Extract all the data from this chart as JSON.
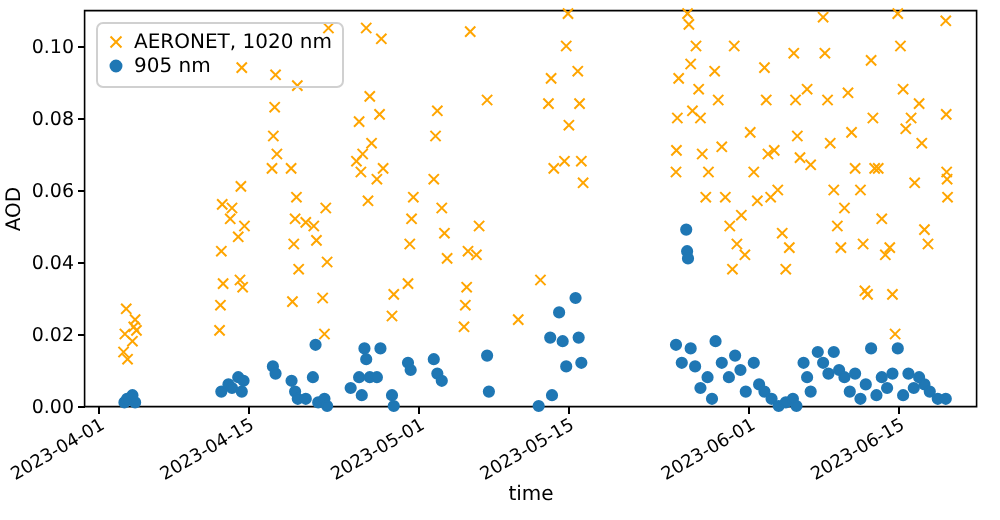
{
  "chart_data": {
    "type": "scatter",
    "xlabel": "time",
    "ylabel": "AOD",
    "legend": "top left",
    "grid": false,
    "xlim": [
      "2023-03-30T17:00",
      "2023-06-22T08:00"
    ],
    "xticks": [
      "2023-04-01",
      "2023-04-15",
      "2023-05-01",
      "2023-05-15",
      "2023-06-01",
      "2023-06-15"
    ],
    "ylim": [
      0,
      0.11
    ],
    "yticks": [
      {
        "value": 0,
        "label": "0.00"
      },
      {
        "value": 0.02,
        "label": "0.02"
      },
      {
        "value": 0.04,
        "label": "0.04"
      },
      {
        "value": 0.06,
        "label": "0.06"
      },
      {
        "value": 0.08,
        "label": "0.08"
      },
      {
        "value": 0.1,
        "label": "0.10"
      }
    ],
    "series": [
      {
        "name": "AERONET, 1020 nm",
        "color": "#ffa500",
        "marker": "cross",
        "x": [
          "2023-04-03T10:00",
          "2023-04-03T13:00",
          "2023-04-03T16:00",
          "2023-04-03T19:00",
          "2023-04-04T06:00",
          "2023-04-04T09:00",
          "2023-04-04T12:00",
          "2023-04-04T15:00",
          "2023-04-12T10:00",
          "2023-04-12T12:00",
          "2023-04-12T14:00",
          "2023-04-12T16:00",
          "2023-04-12T18:00",
          "2023-04-13T10:00",
          "2023-04-13T14:00",
          "2023-04-14T04:00",
          "2023-04-14T08:00",
          "2023-04-14T10:00",
          "2023-04-14T12:00",
          "2023-04-14T14:00",
          "2023-04-14T18:00",
          "2023-04-17T08:00",
          "2023-04-17T11:00",
          "2023-04-17T14:00",
          "2023-04-17T16:00",
          "2023-04-17T19:00",
          "2023-04-19T03:00",
          "2023-04-19T06:00",
          "2023-04-19T09:00",
          "2023-04-19T12:00",
          "2023-04-19T15:00",
          "2023-04-19T17:00",
          "2023-04-19T20:00",
          "2023-04-20T12:00",
          "2023-04-21T06:00",
          "2023-04-21T12:00",
          "2023-04-22T02:00",
          "2023-04-22T06:00",
          "2023-04-22T09:00",
          "2023-04-22T12:00",
          "2023-04-22T15:00",
          "2023-04-25T06:00",
          "2023-04-25T12:00",
          "2023-04-25T16:00",
          "2023-04-25T20:00",
          "2023-04-26T04:00",
          "2023-04-26T08:00",
          "2023-04-26T12:00",
          "2023-04-26T16:00",
          "2023-04-27T04:00",
          "2023-04-27T10:00",
          "2023-04-27T14:00",
          "2023-04-27T18:00",
          "2023-04-28T14:00",
          "2023-04-28T18:00",
          "2023-04-30T02:00",
          "2023-04-30T06:00",
          "2023-04-30T10:00",
          "2023-04-30T14:00",
          "2023-05-02T12:00",
          "2023-05-02T16:00",
          "2023-05-02T20:00",
          "2023-05-03T06:00",
          "2023-05-03T12:00",
          "2023-05-03T18:00",
          "2023-05-05T08:00",
          "2023-05-05T11:00",
          "2023-05-05T14:00",
          "2023-05-05T17:00",
          "2023-05-05T22:00",
          "2023-05-06T12:00",
          "2023-05-06T18:00",
          "2023-05-07T12:00",
          "2023-05-10T10:00",
          "2023-05-12T12:00",
          "2023-05-13T06:00",
          "2023-05-13T12:00",
          "2023-05-13T18:00",
          "2023-05-14T18:00",
          "2023-05-14T22:00",
          "2023-05-15T02:00",
          "2023-05-15T04:00",
          "2023-05-16T00:00",
          "2023-05-16T04:00",
          "2023-05-16T08:00",
          "2023-05-16T12:00",
          "2023-05-25T05:00",
          "2023-05-25T06:00",
          "2023-05-25T08:00",
          "2023-05-25T11:00",
          "2023-05-26T07:00",
          "2023-05-26T10:00",
          "2023-05-26T14:00",
          "2023-05-26T18:00",
          "2023-05-27T02:00",
          "2023-05-27T08:00",
          "2023-05-27T12:00",
          "2023-05-27T16:00",
          "2023-05-28T00:00",
          "2023-05-28T06:00",
          "2023-05-28T20:00",
          "2023-05-29T04:00",
          "2023-05-29T12:00",
          "2023-05-29T20:00",
          "2023-05-30T06:00",
          "2023-05-30T12:00",
          "2023-05-30T16:00",
          "2023-05-30T22:00",
          "2023-05-31T08:00",
          "2023-05-31T16:00",
          "2023-06-01T04:00",
          "2023-06-01T12:00",
          "2023-06-01T20:00",
          "2023-06-02T12:00",
          "2023-06-02T16:00",
          "2023-06-02T20:00",
          "2023-06-03T02:00",
          "2023-06-03T10:00",
          "2023-06-03T18:00",
          "2023-06-04T04:00",
          "2023-06-04T12:00",
          "2023-06-04T20:00",
          "2023-06-05T06:00",
          "2023-06-05T10:00",
          "2023-06-05T14:00",
          "2023-06-05T20:00",
          "2023-06-06T12:00",
          "2023-06-06T20:00",
          "2023-06-08T00:00",
          "2023-06-08T04:00",
          "2023-06-08T10:00",
          "2023-06-08T16:00",
          "2023-06-09T00:00",
          "2023-06-09T08:00",
          "2023-06-09T16:00",
          "2023-06-10T00:00",
          "2023-06-10T08:00",
          "2023-06-10T16:00",
          "2023-06-11T00:00",
          "2023-06-11T12:00",
          "2023-06-11T18:00",
          "2023-06-11T22:00",
          "2023-06-12T04:00",
          "2023-06-12T12:00",
          "2023-06-12T16:00",
          "2023-06-12T20:00",
          "2023-06-13T04:00",
          "2023-06-13T12:00",
          "2023-06-13T20:00",
          "2023-06-14T06:00",
          "2023-06-14T12:00",
          "2023-06-14T18:00",
          "2023-06-15T00:00",
          "2023-06-15T06:00",
          "2023-06-15T12:00",
          "2023-06-15T18:00",
          "2023-06-16T06:00",
          "2023-06-16T14:00",
          "2023-06-17T00:00",
          "2023-06-17T06:00",
          "2023-06-17T12:00",
          "2023-06-17T20:00",
          "2023-06-19T12:00",
          "2023-06-19T13:00",
          "2023-06-19T14:00",
          "2023-06-19T15:00",
          "2023-06-19T16:00"
        ],
        "values": [
          0.015,
          0.02,
          0.027,
          0.013,
          0.018,
          0.022,
          0.024,
          0.021,
          0.021,
          0.028,
          0.043,
          0.056,
          0.034,
          0.052,
          0.055,
          0.047,
          0.035,
          0.061,
          0.094,
          0.033,
          0.05,
          0.066,
          0.075,
          0.083,
          0.092,
          0.07,
          0.066,
          0.029,
          0.045,
          0.052,
          0.058,
          0.089,
          0.038,
          0.051,
          0.05,
          0.046,
          0.03,
          0.02,
          0.055,
          0.04,
          0.105,
          0.068,
          0.079,
          0.065,
          0.07,
          0.105,
          0.057,
          0.086,
          0.073,
          0.063,
          0.081,
          0.102,
          0.066,
          0.025,
          0.031,
          0.034,
          0.045,
          0.052,
          0.058,
          0.063,
          0.075,
          0.082,
          0.055,
          0.048,
          0.041,
          0.022,
          0.028,
          0.033,
          0.043,
          0.104,
          0.042,
          0.05,
          0.085,
          0.024,
          0.035,
          0.084,
          0.091,
          0.066,
          0.068,
          0.1,
          0.109,
          0.078,
          0.093,
          0.084,
          0.068,
          0.062,
          0.065,
          0.071,
          0.08,
          0.091,
          0.109,
          0.106,
          0.095,
          0.082,
          0.1,
          0.088,
          0.08,
          0.07,
          0.058,
          0.065,
          0.093,
          0.085,
          0.072,
          0.058,
          0.05,
          0.038,
          0.1,
          0.045,
          0.053,
          0.042,
          0.076,
          0.065,
          0.057,
          0.094,
          0.085,
          0.07,
          0.058,
          0.071,
          0.06,
          0.048,
          0.038,
          0.044,
          0.098,
          0.085,
          0.075,
          0.069,
          0.088,
          0.067,
          0.108,
          0.098,
          0.085,
          0.073,
          0.06,
          0.05,
          0.044,
          0.055,
          0.087,
          0.076,
          0.066,
          0.06,
          0.045,
          0.032,
          0.031,
          0.096,
          0.08,
          0.066,
          0.066,
          0.052,
          0.042,
          0.044,
          0.031,
          0.02,
          0.109,
          0.1,
          0.088,
          0.077,
          0.08,
          0.062,
          0.084,
          0.073,
          0.049,
          0.045,
          0.107,
          0.081,
          0.065,
          0.063,
          0.058
        ]
      },
      {
        "name": "905 nm",
        "color": "#1f77b4",
        "marker": "circle",
        "x": [
          "2023-04-03T12:00",
          "2023-04-03T18:00",
          "2023-04-04T06:00",
          "2023-04-04T12:00",
          "2023-04-12T14:00",
          "2023-04-13T06:00",
          "2023-04-13T14:00",
          "2023-04-14T04:00",
          "2023-04-14T12:00",
          "2023-04-14T16:00",
          "2023-04-17T10:00",
          "2023-04-17T16:00",
          "2023-04-19T04:00",
          "2023-04-19T12:00",
          "2023-04-19T18:00",
          "2023-04-20T12:00",
          "2023-04-21T04:00",
          "2023-04-21T10:00",
          "2023-04-21T16:00",
          "2023-04-22T06:00",
          "2023-04-22T12:00",
          "2023-04-24T17:00",
          "2023-04-25T12:00",
          "2023-04-25T18:00",
          "2023-04-26T00:00",
          "2023-04-26T04:00",
          "2023-04-26T12:00",
          "2023-04-27T04:00",
          "2023-04-27T12:00",
          "2023-04-28T14:00",
          "2023-04-28T18:00",
          "2023-04-30T02:00",
          "2023-04-30T08:00",
          "2023-05-02T12:00",
          "2023-05-02T20:00",
          "2023-05-03T06:00",
          "2023-05-07T12:00",
          "2023-05-07T16:00",
          "2023-05-12T08:00",
          "2023-05-13T10:00",
          "2023-05-13T14:00",
          "2023-05-14T06:00",
          "2023-05-14T14:00",
          "2023-05-14T22:00",
          "2023-05-15T19:00",
          "2023-05-16T02:00",
          "2023-05-16T08:00",
          "2023-05-25T05:00",
          "2023-05-25T18:00",
          "2023-05-26T04:00",
          "2023-05-26T06:00",
          "2023-05-26T08:00",
          "2023-05-26T14:00",
          "2023-05-27T00:00",
          "2023-05-27T12:00",
          "2023-05-28T04:00",
          "2023-05-28T14:00",
          "2023-05-28T22:00",
          "2023-05-29T12:00",
          "2023-05-30T04:00",
          "2023-05-30T18:00",
          "2023-05-31T06:00",
          "2023-05-31T18:00",
          "2023-06-01T12:00",
          "2023-06-02T00:00",
          "2023-06-02T12:00",
          "2023-06-03T04:00",
          "2023-06-03T20:00",
          "2023-06-04T12:00",
          "2023-06-05T04:00",
          "2023-06-05T12:00",
          "2023-06-06T04:00",
          "2023-06-06T12:00",
          "2023-06-06T20:00",
          "2023-06-07T12:00",
          "2023-06-08T00:00",
          "2023-06-08T12:00",
          "2023-06-09T00:00",
          "2023-06-09T12:00",
          "2023-06-10T00:00",
          "2023-06-10T12:00",
          "2023-06-11T00:00",
          "2023-06-11T12:00",
          "2023-06-12T00:00",
          "2023-06-12T12:00",
          "2023-06-13T00:00",
          "2023-06-13T12:00",
          "2023-06-14T00:00",
          "2023-06-14T12:00",
          "2023-06-15T00:00",
          "2023-06-15T12:00",
          "2023-06-16T00:00",
          "2023-06-16T12:00",
          "2023-06-17T00:00",
          "2023-06-17T12:00",
          "2023-06-18T00:00",
          "2023-06-18T18:00",
          "2023-06-19T12:00"
        ],
        "values": [
          0.001,
          0.002,
          0.003,
          0.001,
          0.004,
          0.006,
          0.005,
          0.008,
          0.004,
          0.007,
          0.011,
          0.009,
          0.007,
          0.004,
          0.002,
          0.002,
          0.008,
          0.017,
          0.001,
          0.002,
          0.0,
          0.005,
          0.008,
          0.003,
          0.016,
          0.013,
          0.008,
          0.008,
          0.016,
          0.003,
          0.0,
          0.012,
          0.01,
          0.013,
          0.009,
          0.007,
          0.014,
          0.004,
          0.0,
          0.019,
          0.003,
          0.026,
          0.018,
          0.011,
          0.03,
          0.019,
          0.012,
          0.017,
          0.012,
          0.049,
          0.043,
          0.041,
          0.016,
          0.011,
          0.005,
          0.008,
          0.002,
          0.018,
          0.012,
          0.008,
          0.014,
          0.01,
          0.004,
          0.012,
          0.006,
          0.004,
          0.002,
          0.0,
          0.001,
          0.002,
          0.0,
          0.012,
          0.008,
          0.004,
          0.015,
          0.012,
          0.009,
          0.015,
          0.01,
          0.008,
          0.004,
          0.009,
          0.002,
          0.006,
          0.016,
          0.003,
          0.008,
          0.005,
          0.009,
          0.016,
          0.003,
          0.009,
          0.005,
          0.008,
          0.006,
          0.004,
          0.002,
          0.002
        ]
      }
    ]
  }
}
